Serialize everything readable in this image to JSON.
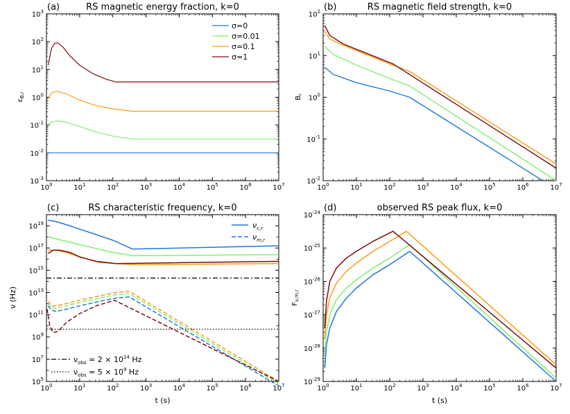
{
  "colors": {
    "s0": "#1f77d4",
    "s001": "#7fef6f",
    "s01": "#ff9a12",
    "s1": "#7a0a0a",
    "black": "#000000"
  },
  "chart_data": [
    {
      "id": "a",
      "type": "line",
      "panel_label": "(a)",
      "title": "RS magnetic energy fraction, k=0",
      "xlabel": "",
      "ylabel": "εB,r",
      "xlim_exp": [
        0,
        7
      ],
      "ylim_exp": [
        -3,
        3
      ],
      "x_ticks": [
        "10^0",
        "10^1",
        "10^2",
        "10^3",
        "10^4",
        "10^5",
        "10^6",
        "10^7"
      ],
      "y_ticks": [
        "10^-3",
        "10^-2",
        "10^-1",
        "10^0",
        "10^1",
        "10^2",
        "10^3"
      ],
      "legend_position": "top-right",
      "legend": [
        {
          "label": "σ=0",
          "color": "s0",
          "dash": "solid"
        },
        {
          "label": "σ=0.01",
          "color": "s001",
          "dash": "solid"
        },
        {
          "label": "σ=0.1",
          "color": "s01",
          "dash": "solid"
        },
        {
          "label": "σ=1",
          "color": "s1",
          "dash": "solid"
        }
      ],
      "series": [
        {
          "name": "σ=0",
          "color": "s0",
          "dash": "solid",
          "width": 1.2,
          "logx": [
            0,
            7
          ],
          "logy": [
            -2,
            -2
          ]
        },
        {
          "name": "σ=0.01",
          "color": "s001",
          "dash": "solid",
          "width": 1.2,
          "logx": [
            0.05,
            0.15,
            0.3,
            0.6,
            1.0,
            1.5,
            2.0,
            2.6,
            7
          ],
          "logy": [
            -1.0,
            -0.9,
            -0.85,
            -0.9,
            -1.05,
            -1.25,
            -1.4,
            -1.5,
            -1.5
          ]
        },
        {
          "name": "σ=0.1",
          "color": "s01",
          "dash": "solid",
          "width": 1.2,
          "logx": [
            0.05,
            0.15,
            0.3,
            0.6,
            1.0,
            1.5,
            2.0,
            2.6,
            7
          ],
          "logy": [
            -0.05,
            0.15,
            0.22,
            0.12,
            -0.1,
            -0.3,
            -0.42,
            -0.5,
            -0.5
          ]
        },
        {
          "name": "σ=1",
          "color": "s1",
          "dash": "solid",
          "width": 1.2,
          "logx": [
            0.05,
            0.15,
            0.25,
            0.35,
            0.5,
            0.7,
            1.0,
            1.4,
            1.8,
            2.1,
            7
          ],
          "logy": [
            1.15,
            1.75,
            1.95,
            1.95,
            1.8,
            1.5,
            1.15,
            0.85,
            0.65,
            0.55,
            0.55
          ]
        }
      ]
    },
    {
      "id": "b",
      "type": "line",
      "panel_label": "(b)",
      "title": "RS magnetic field strength, k=0",
      "xlabel": "",
      "ylabel": "Br",
      "xlim_exp": [
        0,
        7
      ],
      "ylim_exp": [
        -2,
        2
      ],
      "x_ticks": [
        "10^0",
        "10^1",
        "10^2",
        "10^3",
        "10^4",
        "10^5",
        "10^6",
        "10^7"
      ],
      "y_ticks": [
        "10^-2",
        "10^-1",
        "10^0",
        "10^1",
        "10^2"
      ],
      "series": [
        {
          "name": "σ=0",
          "color": "s0",
          "dash": "solid",
          "width": 1.4,
          "logx": [
            0.05,
            0.3,
            1.0,
            2.0,
            2.6,
            6.6
          ],
          "logy": [
            0.72,
            0.55,
            0.35,
            0.15,
            0.0,
            -2.0
          ]
        },
        {
          "name": "σ=0.01",
          "color": "s001",
          "dash": "solid",
          "width": 1.4,
          "logx": [
            0.05,
            0.3,
            1.0,
            2.0,
            2.6,
            7
          ],
          "logy": [
            1.22,
            1.03,
            0.77,
            0.45,
            0.27,
            -2.0
          ]
        },
        {
          "name": "σ=0.1",
          "color": "s01",
          "dash": "solid",
          "width": 1.4,
          "logx": [
            0.05,
            0.2,
            0.6,
            1.0,
            2.0,
            2.6,
            7
          ],
          "logy": [
            1.58,
            1.4,
            1.25,
            1.12,
            0.8,
            0.62,
            -1.6
          ]
        },
        {
          "name": "σ=1",
          "color": "s1",
          "dash": "solid",
          "width": 1.4,
          "logx": [
            0.05,
            0.2,
            0.6,
            1.0,
            1.6,
            2.1,
            7
          ],
          "logy": [
            1.72,
            1.48,
            1.28,
            1.15,
            0.96,
            0.8,
            -1.7
          ]
        }
      ]
    },
    {
      "id": "c",
      "type": "line",
      "panel_label": "(c)",
      "title": "RS characteristic frequency, k=0",
      "xlabel": "t (s)",
      "ylabel": "ν (Hz)",
      "xlim_exp": [
        0,
        7
      ],
      "ylim_exp": [
        5,
        20
      ],
      "x_ticks": [
        "10^0",
        "10^1",
        "10^2",
        "10^3",
        "10^4",
        "10^5",
        "10^6",
        "10^7"
      ],
      "y_ticks": [
        "10^5",
        "10^7",
        "10^9",
        "10^11",
        "10^13",
        "10^15",
        "10^17",
        "10^19"
      ],
      "legend_position": "top-right",
      "legend": [
        {
          "label": "νc,r",
          "color": "s0",
          "dash": "solid"
        },
        {
          "label": "νm,r",
          "color": "s0",
          "dash": "dashed"
        }
      ],
      "legend2_position": "bottom-left",
      "legend2": [
        {
          "label": "νobs = 2 × 10^14 Hz",
          "color": "black",
          "dash": "dashdot"
        },
        {
          "label": "νobs = 5 × 10^9 Hz",
          "color": "black",
          "dash": "dotted"
        }
      ],
      "series": [
        {
          "name": "νc σ=0",
          "color": "s0",
          "dash": "solid",
          "width": 1.5,
          "logx": [
            0.05,
            0.25,
            0.6,
            1.0,
            2.0,
            2.6,
            7
          ],
          "logy": [
            19.5,
            19.4,
            19.1,
            18.7,
            17.7,
            16.9,
            17.2
          ]
        },
        {
          "name": "νc σ=0.01",
          "color": "s001",
          "dash": "solid",
          "width": 1.5,
          "logx": [
            0.05,
            0.6,
            1.0,
            2.0,
            2.6,
            7
          ],
          "logy": [
            18.0,
            17.6,
            17.3,
            16.6,
            16.3,
            16.4
          ]
        },
        {
          "name": "νc σ=0.1",
          "color": "s01",
          "dash": "solid",
          "width": 1.5,
          "logx": [
            0.05,
            0.3,
            0.6,
            1.0,
            1.6,
            2.6,
            7
          ],
          "logy": [
            16.8,
            16.8,
            16.6,
            16.2,
            15.7,
            15.5,
            15.6
          ]
        },
        {
          "name": "νc σ=1",
          "color": "s1",
          "dash": "solid",
          "width": 1.5,
          "logx": [
            0.05,
            0.2,
            0.4,
            0.7,
            1.0,
            1.5,
            2.1,
            7
          ],
          "logy": [
            16.5,
            16.8,
            16.8,
            16.6,
            16.2,
            15.8,
            15.6,
            15.8
          ]
        },
        {
          "name": "νm σ=0",
          "color": "s0",
          "dash": "dashed",
          "width": 1.5,
          "logx": [
            0.05,
            0.15,
            0.3,
            0.6,
            1.0,
            1.6,
            2.1,
            2.5,
            7
          ],
          "logy": [
            11.8,
            11.4,
            11.3,
            11.5,
            11.8,
            12.2,
            12.5,
            12.6,
            4.6
          ]
        },
        {
          "name": "νm σ=0.01",
          "color": "s001",
          "dash": "dashed",
          "width": 1.5,
          "logx": [
            0.05,
            0.15,
            0.3,
            0.6,
            1.0,
            1.6,
            2.1,
            2.5,
            7
          ],
          "logy": [
            12.0,
            11.6,
            11.6,
            11.8,
            12.1,
            12.5,
            12.8,
            12.9,
            4.8
          ]
        },
        {
          "name": "νm σ=0.1",
          "color": "s01",
          "dash": "dashed",
          "width": 1.5,
          "logx": [
            0.05,
            0.15,
            0.3,
            0.6,
            1.0,
            1.6,
            2.1,
            2.5,
            7
          ],
          "logy": [
            12.2,
            11.8,
            11.8,
            12.0,
            12.3,
            12.7,
            13.0,
            13.1,
            5.0
          ]
        },
        {
          "name": "νm σ=1",
          "color": "s1",
          "dash": "dashed",
          "width": 1.5,
          "logx": [
            0.02,
            0.1,
            0.2,
            0.35,
            0.6,
            1.0,
            1.5,
            2.05,
            7
          ],
          "logy": [
            11.5,
            10.0,
            9.4,
            9.5,
            10.3,
            11.1,
            11.8,
            12.3,
            5.0
          ]
        },
        {
          "name": "νobs 2e14",
          "color": "black",
          "dash": "dashdot",
          "width": 1.3,
          "logx": [
            0,
            7
          ],
          "logy": [
            14.3,
            14.3
          ]
        },
        {
          "name": "νobs 5e9",
          "color": "black",
          "dash": "dotted",
          "width": 1.2,
          "logx": [
            0,
            7
          ],
          "logy": [
            9.7,
            9.7
          ]
        }
      ]
    },
    {
      "id": "d",
      "type": "line",
      "panel_label": "(d)",
      "title": "observed RS peak flux, k=0",
      "xlabel": "t (s)",
      "ylabel": "Fν,m,r",
      "xlim_exp": [
        0,
        7
      ],
      "ylim_exp": [
        -29,
        -24
      ],
      "x_ticks": [
        "10^0",
        "10^1",
        "10^2",
        "10^3",
        "10^4",
        "10^5",
        "10^6",
        "10^7"
      ],
      "y_ticks": [
        "10^-29",
        "10^-28",
        "10^-27",
        "10^-26",
        "10^-25",
        "10^-24"
      ],
      "series": [
        {
          "name": "σ=0",
          "color": "s0",
          "dash": "solid",
          "width": 1.5,
          "logx": [
            0.05,
            0.1,
            0.2,
            0.4,
            0.7,
            1.0,
            1.5,
            2.0,
            2.6,
            7
          ],
          "logy": [
            -28.6,
            -27.9,
            -27.4,
            -26.9,
            -26.5,
            -26.2,
            -25.8,
            -25.5,
            -25.1,
            -29.0
          ]
        },
        {
          "name": "σ=0.01",
          "color": "s001",
          "dash": "solid",
          "width": 1.5,
          "logx": [
            0.05,
            0.1,
            0.2,
            0.4,
            0.7,
            1.0,
            1.5,
            2.0,
            2.6,
            7
          ],
          "logy": [
            -28.2,
            -27.5,
            -27.0,
            -26.55,
            -26.2,
            -25.95,
            -25.6,
            -25.3,
            -24.9,
            -28.9
          ]
        },
        {
          "name": "σ=0.1",
          "color": "s01",
          "dash": "solid",
          "width": 1.5,
          "logx": [
            0.05,
            0.1,
            0.2,
            0.4,
            0.7,
            1.0,
            1.5,
            2.0,
            2.5,
            7
          ],
          "logy": [
            -27.7,
            -27.0,
            -26.5,
            -26.05,
            -25.7,
            -25.45,
            -25.1,
            -24.8,
            -24.5,
            -28.5
          ]
        },
        {
          "name": "σ=1",
          "color": "s1",
          "dash": "solid",
          "width": 1.5,
          "logx": [
            0.05,
            0.1,
            0.2,
            0.4,
            0.7,
            1.0,
            1.5,
            2.1,
            7
          ],
          "logy": [
            -27.4,
            -26.6,
            -26.0,
            -25.6,
            -25.3,
            -25.1,
            -24.8,
            -24.5,
            -28.6
          ]
        }
      ]
    }
  ]
}
